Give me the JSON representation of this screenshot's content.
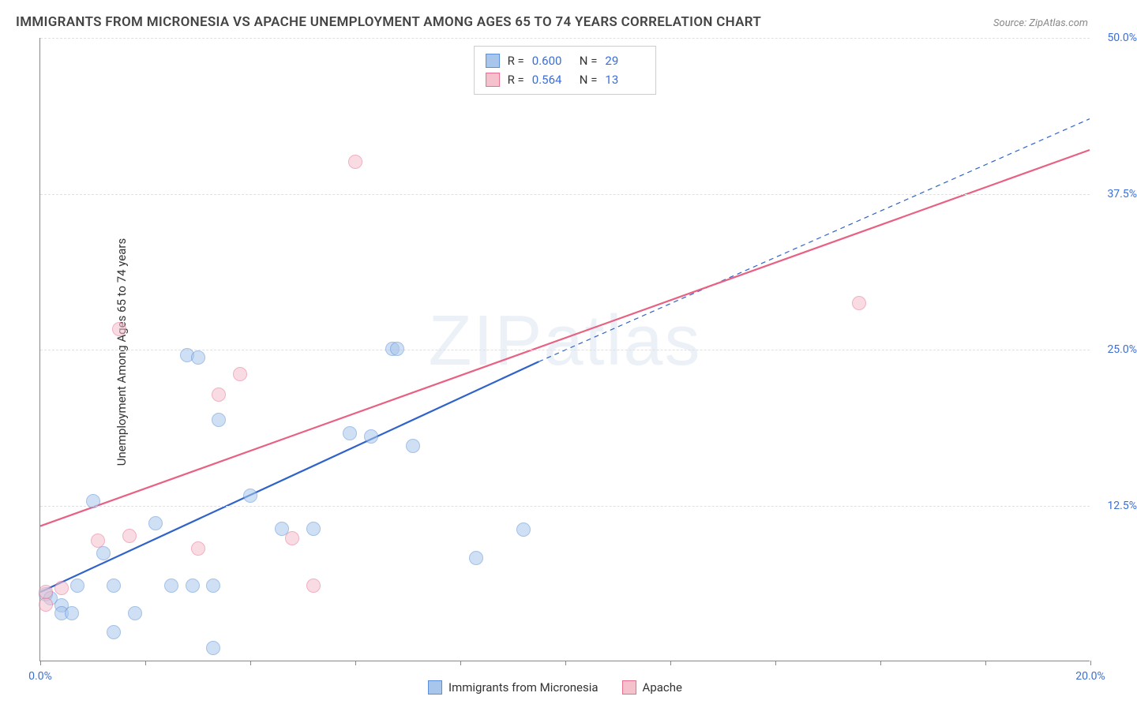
{
  "title": "IMMIGRANTS FROM MICRONESIA VS APACHE UNEMPLOYMENT AMONG AGES 65 TO 74 YEARS CORRELATION CHART",
  "source": "Source: ZipAtlas.com",
  "y_axis_label": "Unemployment Among Ages 65 to 74 years",
  "watermark": "ZIPatlas",
  "chart": {
    "type": "scatter",
    "xlim": [
      0,
      20
    ],
    "ylim": [
      0,
      50
    ],
    "x_ticks": [
      0,
      2,
      4,
      6,
      8,
      10,
      12,
      14,
      16,
      18,
      20
    ],
    "x_tick_labels": {
      "0": "0.0%",
      "20": "20.0%"
    },
    "y_ticks": [
      12.5,
      25.0,
      37.5,
      50.0
    ],
    "y_tick_labels": [
      "12.5%",
      "25.0%",
      "37.5%",
      "50.0%"
    ],
    "background_color": "#ffffff",
    "grid_color": "#e0e0e0",
    "axis_color": "#888888",
    "tick_label_color": "#3b6fd6",
    "point_radius": 9,
    "point_opacity": 0.55,
    "series": [
      {
        "name": "Immigrants from Micronesia",
        "color_fill": "#a8c6ec",
        "color_stroke": "#5b8fd6",
        "R": "0.600",
        "N": "29",
        "trend": {
          "x1": 0,
          "y1": 5.5,
          "x2": 9.5,
          "y2": 24.0,
          "style": "solid",
          "width": 2.2,
          "color": "#2f63c9",
          "dash_ext": {
            "x2": 20,
            "y2": 43.5
          }
        },
        "points": [
          {
            "x": 0.1,
            "y": 5.3
          },
          {
            "x": 0.2,
            "y": 5.0
          },
          {
            "x": 0.4,
            "y": 4.4
          },
          {
            "x": 0.4,
            "y": 3.8
          },
          {
            "x": 0.6,
            "y": 3.8
          },
          {
            "x": 0.7,
            "y": 6.0
          },
          {
            "x": 1.0,
            "y": 12.8
          },
          {
            "x": 1.2,
            "y": 8.6
          },
          {
            "x": 1.4,
            "y": 2.3
          },
          {
            "x": 1.4,
            "y": 6.0
          },
          {
            "x": 1.8,
            "y": 3.8
          },
          {
            "x": 2.2,
            "y": 11.0
          },
          {
            "x": 2.5,
            "y": 6.0
          },
          {
            "x": 2.8,
            "y": 24.5
          },
          {
            "x": 2.9,
            "y": 6.0
          },
          {
            "x": 3.0,
            "y": 24.3
          },
          {
            "x": 3.3,
            "y": 1.0
          },
          {
            "x": 3.3,
            "y": 6.0
          },
          {
            "x": 3.4,
            "y": 19.3
          },
          {
            "x": 4.0,
            "y": 13.2
          },
          {
            "x": 4.6,
            "y": 10.6
          },
          {
            "x": 5.2,
            "y": 10.6
          },
          {
            "x": 5.9,
            "y": 18.2
          },
          {
            "x": 6.3,
            "y": 18.0
          },
          {
            "x": 6.7,
            "y": 25.0
          },
          {
            "x": 6.8,
            "y": 25.0
          },
          {
            "x": 7.1,
            "y": 17.2
          },
          {
            "x": 8.3,
            "y": 8.2
          },
          {
            "x": 9.2,
            "y": 10.5
          }
        ]
      },
      {
        "name": "Apache",
        "color_fill": "#f5c1cd",
        "color_stroke": "#e86f8f",
        "R": "0.564",
        "N": "13",
        "trend": {
          "x1": 0,
          "y1": 10.8,
          "x2": 20,
          "y2": 41.0,
          "style": "solid",
          "width": 2.2,
          "color": "#e86082"
        },
        "points": [
          {
            "x": 0.1,
            "y": 4.5
          },
          {
            "x": 0.1,
            "y": 5.5
          },
          {
            "x": 0.4,
            "y": 5.8
          },
          {
            "x": 1.1,
            "y": 9.6
          },
          {
            "x": 1.5,
            "y": 26.6
          },
          {
            "x": 1.7,
            "y": 10.0
          },
          {
            "x": 3.0,
            "y": 9.0
          },
          {
            "x": 3.4,
            "y": 21.3
          },
          {
            "x": 3.8,
            "y": 23.0
          },
          {
            "x": 4.8,
            "y": 9.8
          },
          {
            "x": 5.2,
            "y": 6.0
          },
          {
            "x": 6.0,
            "y": 40.0
          },
          {
            "x": 15.6,
            "y": 28.7
          }
        ]
      }
    ]
  },
  "bottom_legend": [
    {
      "label": "Immigrants from Micronesia",
      "fill": "#a8c6ec",
      "stroke": "#5b8fd6"
    },
    {
      "label": "Apache",
      "fill": "#f5c1cd",
      "stroke": "#e86f8f"
    }
  ]
}
